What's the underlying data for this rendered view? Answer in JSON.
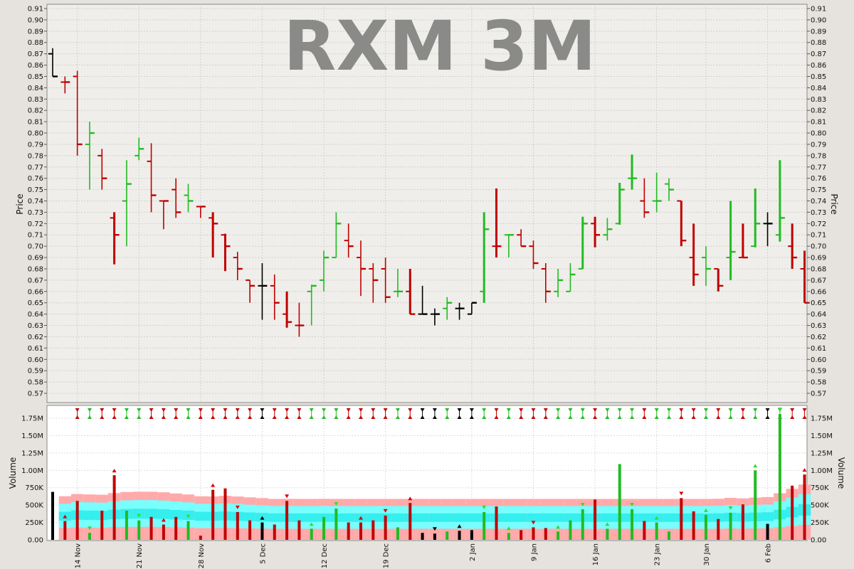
{
  "chart_data": {
    "type": "ohlc",
    "title": "RXM 3M",
    "price_panel": {
      "ylabel": "Price",
      "ylim": [
        0.56,
        0.91
      ],
      "yticks": [
        "0.91",
        "0.90",
        "0.89",
        "0.88",
        "0.87",
        "0.86",
        "0.85",
        "0.84",
        "0.83",
        "0.82",
        "0.81",
        "0.80",
        "0.79",
        "0.78",
        "0.77",
        "0.76",
        "0.75",
        "0.74",
        "0.73",
        "0.72",
        "0.71",
        "0.70",
        "0.69",
        "0.68",
        "0.67",
        "0.66",
        "0.65",
        "0.64",
        "0.63",
        "0.62",
        "0.61",
        "0.60",
        "0.59",
        "0.58",
        "0.57"
      ]
    },
    "volume_panel": {
      "ylabel": "Volume",
      "ylim": [
        0,
        1900000
      ],
      "ytick_values": [
        0,
        250000,
        500000,
        750000,
        1000000,
        1250000,
        1500000,
        1750000
      ],
      "yticks": [
        "0.00",
        "250K",
        "500K",
        "750K",
        "1.00M",
        "1.25M",
        "1.50M",
        "1.75M"
      ]
    },
    "x_ticks": [
      {
        "label": "14 Nov",
        "index": 2
      },
      {
        "label": "21 Nov",
        "index": 7
      },
      {
        "label": "28 Nov",
        "index": 12
      },
      {
        "label": "5 Dec",
        "index": 17
      },
      {
        "label": "12 Dec",
        "index": 22
      },
      {
        "label": "19 Dec",
        "index": 27
      },
      {
        "label": "2 Jan",
        "index": 34
      },
      {
        "label": "9 Jan",
        "index": 39
      },
      {
        "label": "16 Jan",
        "index": 44
      },
      {
        "label": "23 Jan",
        "index": 49
      },
      {
        "label": "30 Jan",
        "index": 53
      },
      {
        "label": "6 Feb",
        "index": 58
      }
    ],
    "colors": {
      "up": "#22bb22",
      "down": "#c00000",
      "neutral": "#000000",
      "band_outer": "#ffaaaa",
      "band_inner": "#77ffff",
      "band_core": "#00e0e0"
    },
    "bars": [
      {
        "o": 0.87,
        "h": 0.875,
        "l": 0.85,
        "c": 0.85,
        "v": 690000,
        "d": "n",
        "w": "thin"
      },
      {
        "o": 0.845,
        "h": 0.85,
        "l": 0.835,
        "c": 0.845,
        "v": 270000,
        "d": "d",
        "w": "thin"
      },
      {
        "o": 0.85,
        "h": 0.855,
        "l": 0.78,
        "c": 0.79,
        "v": 560000,
        "d": "d",
        "w": "thin"
      },
      {
        "o": 0.79,
        "h": 0.81,
        "l": 0.75,
        "c": 0.8,
        "v": 100000,
        "d": "u",
        "w": "thin"
      },
      {
        "o": 0.78,
        "h": 0.786,
        "l": 0.75,
        "c": 0.76,
        "v": 420000,
        "d": "d",
        "w": "thin"
      },
      {
        "o": 0.725,
        "h": 0.73,
        "l": 0.684,
        "c": 0.71,
        "v": 930000,
        "d": "d",
        "w": "thick"
      },
      {
        "o": 0.74,
        "h": 0.776,
        "l": 0.7,
        "c": 0.755,
        "v": 420000,
        "d": "u",
        "w": "thin"
      },
      {
        "o": 0.78,
        "h": 0.796,
        "l": 0.776,
        "c": 0.786,
        "v": 280000,
        "d": "u",
        "w": "thin"
      },
      {
        "o": 0.775,
        "h": 0.791,
        "l": 0.73,
        "c": 0.745,
        "v": 330000,
        "d": "d",
        "w": "thin"
      },
      {
        "o": 0.74,
        "h": 0.74,
        "l": 0.715,
        "c": 0.74,
        "v": 220000,
        "d": "d",
        "w": "thin"
      },
      {
        "o": 0.75,
        "h": 0.76,
        "l": 0.725,
        "c": 0.73,
        "v": 330000,
        "d": "d",
        "w": "thin"
      },
      {
        "o": 0.745,
        "h": 0.755,
        "l": 0.73,
        "c": 0.74,
        "v": 270000,
        "d": "u",
        "w": "thin"
      },
      {
        "o": 0.735,
        "h": 0.735,
        "l": 0.725,
        "c": 0.735,
        "v": 60000,
        "d": "d",
        "w": "thin"
      },
      {
        "o": 0.725,
        "h": 0.73,
        "l": 0.69,
        "c": 0.72,
        "v": 720000,
        "d": "d",
        "w": "thick"
      },
      {
        "o": 0.71,
        "h": 0.711,
        "l": 0.678,
        "c": 0.7,
        "v": 740000,
        "d": "d",
        "w": "thick"
      },
      {
        "o": 0.69,
        "h": 0.695,
        "l": 0.67,
        "c": 0.68,
        "v": 400000,
        "d": "d",
        "w": "thin"
      },
      {
        "o": 0.67,
        "h": 0.67,
        "l": 0.65,
        "c": 0.665,
        "v": 280000,
        "d": "d",
        "w": "thin"
      },
      {
        "o": 0.665,
        "h": 0.685,
        "l": 0.635,
        "c": 0.665,
        "v": 250000,
        "d": "n",
        "w": "thin"
      },
      {
        "o": 0.665,
        "h": 0.675,
        "l": 0.635,
        "c": 0.65,
        "v": 220000,
        "d": "d",
        "w": "thin"
      },
      {
        "o": 0.64,
        "h": 0.66,
        "l": 0.628,
        "c": 0.633,
        "v": 560000,
        "d": "d",
        "w": "thick"
      },
      {
        "o": 0.63,
        "h": 0.65,
        "l": 0.62,
        "c": 0.63,
        "v": 280000,
        "d": "d",
        "w": "thin"
      },
      {
        "o": 0.66,
        "h": 0.666,
        "l": 0.63,
        "c": 0.665,
        "v": 160000,
        "d": "u",
        "w": "thin"
      },
      {
        "o": 0.67,
        "h": 0.696,
        "l": 0.66,
        "c": 0.69,
        "v": 330000,
        "d": "u",
        "w": "thin"
      },
      {
        "o": 0.69,
        "h": 0.73,
        "l": 0.69,
        "c": 0.72,
        "v": 450000,
        "d": "u",
        "w": "thin"
      },
      {
        "o": 0.705,
        "h": 0.72,
        "l": 0.69,
        "c": 0.7,
        "v": 250000,
        "d": "d",
        "w": "thin"
      },
      {
        "o": 0.69,
        "h": 0.705,
        "l": 0.656,
        "c": 0.68,
        "v": 250000,
        "d": "d",
        "w": "thin"
      },
      {
        "o": 0.68,
        "h": 0.685,
        "l": 0.65,
        "c": 0.67,
        "v": 280000,
        "d": "d",
        "w": "thin"
      },
      {
        "o": 0.68,
        "h": 0.69,
        "l": 0.65,
        "c": 0.655,
        "v": 350000,
        "d": "d",
        "w": "thin"
      },
      {
        "o": 0.66,
        "h": 0.68,
        "l": 0.655,
        "c": 0.66,
        "v": 180000,
        "d": "u",
        "w": "thin"
      },
      {
        "o": 0.66,
        "h": 0.68,
        "l": 0.64,
        "c": 0.64,
        "v": 530000,
        "d": "d",
        "w": "thick"
      },
      {
        "o": 0.64,
        "h": 0.665,
        "l": 0.64,
        "c": 0.64,
        "v": 100000,
        "d": "n",
        "w": "thin"
      },
      {
        "o": 0.64,
        "h": 0.645,
        "l": 0.63,
        "c": 0.64,
        "v": 90000,
        "d": "n",
        "w": "thin"
      },
      {
        "o": 0.645,
        "h": 0.655,
        "l": 0.635,
        "c": 0.65,
        "v": 120000,
        "d": "u",
        "w": "thin"
      },
      {
        "o": 0.645,
        "h": 0.65,
        "l": 0.635,
        "c": 0.645,
        "v": 130000,
        "d": "n",
        "w": "thin"
      },
      {
        "o": 0.64,
        "h": 0.65,
        "l": 0.64,
        "c": 0.65,
        "v": 140000,
        "d": "n",
        "w": "thin"
      },
      {
        "o": 0.66,
        "h": 0.73,
        "l": 0.65,
        "c": 0.715,
        "v": 400000,
        "d": "u",
        "w": "thick"
      },
      {
        "o": 0.7,
        "h": 0.751,
        "l": 0.69,
        "c": 0.7,
        "v": 480000,
        "d": "d",
        "w": "thick"
      },
      {
        "o": 0.71,
        "h": 0.71,
        "l": 0.69,
        "c": 0.71,
        "v": 100000,
        "d": "u",
        "w": "thin"
      },
      {
        "o": 0.71,
        "h": 0.715,
        "l": 0.7,
        "c": 0.7,
        "v": 140000,
        "d": "d",
        "w": "thin"
      },
      {
        "o": 0.7,
        "h": 0.705,
        "l": 0.68,
        "c": 0.685,
        "v": 180000,
        "d": "d",
        "w": "thin"
      },
      {
        "o": 0.68,
        "h": 0.685,
        "l": 0.65,
        "c": 0.66,
        "v": 170000,
        "d": "d",
        "w": "thin"
      },
      {
        "o": 0.66,
        "h": 0.68,
        "l": 0.655,
        "c": 0.67,
        "v": 120000,
        "d": "u",
        "w": "thin"
      },
      {
        "o": 0.66,
        "h": 0.685,
        "l": 0.66,
        "c": 0.675,
        "v": 280000,
        "d": "u",
        "w": "thin"
      },
      {
        "o": 0.68,
        "h": 0.726,
        "l": 0.68,
        "c": 0.72,
        "v": 440000,
        "d": "u",
        "w": "thick"
      },
      {
        "o": 0.72,
        "h": 0.726,
        "l": 0.699,
        "c": 0.71,
        "v": 580000,
        "d": "d",
        "w": "thick"
      },
      {
        "o": 0.71,
        "h": 0.725,
        "l": 0.705,
        "c": 0.715,
        "v": 160000,
        "d": "u",
        "w": "thin"
      },
      {
        "o": 0.72,
        "h": 0.756,
        "l": 0.719,
        "c": 0.75,
        "v": 1090000,
        "d": "u",
        "w": "thick"
      },
      {
        "o": 0.76,
        "h": 0.781,
        "l": 0.75,
        "c": 0.76,
        "v": 440000,
        "d": "u",
        "w": "thick"
      },
      {
        "o": 0.74,
        "h": 0.76,
        "l": 0.725,
        "c": 0.73,
        "v": 270000,
        "d": "d",
        "w": "thin"
      },
      {
        "o": 0.74,
        "h": 0.765,
        "l": 0.73,
        "c": 0.74,
        "v": 250000,
        "d": "u",
        "w": "thin"
      },
      {
        "o": 0.755,
        "h": 0.76,
        "l": 0.74,
        "c": 0.75,
        "v": 120000,
        "d": "u",
        "w": "thin"
      },
      {
        "o": 0.74,
        "h": 0.74,
        "l": 0.7,
        "c": 0.705,
        "v": 600000,
        "d": "d",
        "w": "thick"
      },
      {
        "o": 0.69,
        "h": 0.72,
        "l": 0.665,
        "c": 0.675,
        "v": 410000,
        "d": "d",
        "w": "thick"
      },
      {
        "o": 0.69,
        "h": 0.7,
        "l": 0.665,
        "c": 0.68,
        "v": 360000,
        "d": "u",
        "w": "thin"
      },
      {
        "o": 0.68,
        "h": 0.68,
        "l": 0.66,
        "c": 0.665,
        "v": 300000,
        "d": "d",
        "w": "thick"
      },
      {
        "o": 0.69,
        "h": 0.74,
        "l": 0.67,
        "c": 0.695,
        "v": 390000,
        "d": "u",
        "w": "thick"
      },
      {
        "o": 0.69,
        "h": 0.72,
        "l": 0.69,
        "c": 0.69,
        "v": 510000,
        "d": "d",
        "w": "thick"
      },
      {
        "o": 0.7,
        "h": 0.751,
        "l": 0.699,
        "c": 0.72,
        "v": 1000000,
        "d": "u",
        "w": "thick"
      },
      {
        "o": 0.72,
        "h": 0.73,
        "l": 0.7,
        "c": 0.72,
        "v": 230000,
        "d": "n",
        "w": "thin"
      },
      {
        "o": 0.71,
        "h": 0.776,
        "l": 0.704,
        "c": 0.725,
        "v": 1810000,
        "d": "u",
        "w": "thick"
      },
      {
        "o": 0.7,
        "h": 0.72,
        "l": 0.68,
        "c": 0.69,
        "v": 780000,
        "d": "d",
        "w": "thick"
      },
      {
        "o": 0.68,
        "h": 0.696,
        "l": 0.65,
        "c": 0.65,
        "v": 940000,
        "d": "d",
        "w": "thick"
      }
    ]
  }
}
